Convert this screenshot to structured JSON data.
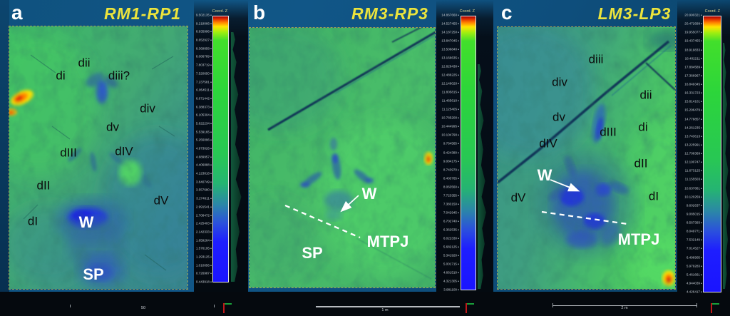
{
  "colors": {
    "title_yellow": "#ece43c",
    "annotation_dark": "#0b0b0b",
    "annotation_light": "#ffffff",
    "map_green": "#45b169",
    "footprint_blue": "#2a44d0",
    "hotspot_orange": "#ff5a00",
    "colorbar_top_red": "#a80000",
    "colorbar_green": "#2cd53b",
    "colorbar_bottom_blue": "#1a14ff",
    "background_blue": "#0e4e7c"
  },
  "panels": [
    {
      "letter": "a",
      "title": "RM1-RP1",
      "colorbar": {
        "header": "Coord. Z",
        "ticks": [
          "9.502135",
          "9.219066",
          "8.935996",
          "8.652927",
          "8.369858",
          "8.086789",
          "7.803719",
          "7.520650",
          "7.237581",
          "6.954511",
          "6.671442",
          "6.388373",
          "6.105304",
          "5.822234",
          "5.539165",
          "5.256096",
          "4.973026",
          "4.689957",
          "4.406888",
          "4.123818",
          "3.840749",
          "3.557680",
          "3.274611",
          "2.991541",
          "2.708472",
          "2.425403",
          "2.142333",
          "1.859264",
          "1.576195",
          "1.293125",
          "1.010056",
          "0.726987",
          "0.443918"
        ]
      },
      "digits": [
        "dii",
        "di",
        "diii?",
        "div",
        "dv",
        "dIII",
        "dIV",
        "dII",
        "dV",
        "dI"
      ],
      "whites": [
        "W",
        "SP"
      ],
      "scalebar_label": "50"
    },
    {
      "letter": "b",
      "title": "RM3-RP3",
      "colorbar": {
        "header": "Coord. Z",
        "ticks": [
          "14.867660",
          "14.527455",
          "14.187250",
          "13.847045",
          "13.506840",
          "13.166635",
          "12.826430",
          "12.486225",
          "12.146020",
          "11.805815",
          "11.465610",
          "11.125405",
          "10.785200",
          "10.444995",
          "10.104790",
          "9.764585",
          "9.424380",
          "9.084175",
          "8.743970",
          "8.403765",
          "8.063560",
          "7.723355",
          "7.383150",
          "7.042945",
          "6.702740",
          "6.362535",
          "6.022330",
          "5.682125",
          "5.341920",
          "5.001715",
          "4.661510",
          "4.321305",
          "3.981100"
        ]
      },
      "digits": [],
      "whites": [
        "W",
        "SP",
        "MTPJ"
      ],
      "scalebar_label": "1 m"
    },
    {
      "letter": "c",
      "title": "LM3-LP3",
      "colorbar": {
        "header": "Coord. Z",
        "ticks": [
          "20.990321",
          "20.472699",
          "19.955077",
          "19.437455",
          "18.919833",
          "18.402211",
          "17.884589",
          "17.366967",
          "16.849345",
          "16.331723",
          "15.814101",
          "15.296479",
          "14.778857",
          "14.261235",
          "13.743613",
          "13.225991",
          "12.708369",
          "12.190747",
          "11.673125",
          "11.155503",
          "10.637881",
          "10.120259",
          "9.602637",
          "9.085015",
          "8.567393",
          "8.049771",
          "7.532149",
          "7.014527",
          "6.496905",
          "5.979283",
          "5.461661",
          "4.944039",
          "4.426417"
        ]
      },
      "digits": [
        "diii",
        "div",
        "dii",
        "dv",
        "dIII",
        "di",
        "dIV",
        "dII",
        "dV",
        "dI"
      ],
      "whites": [
        "W",
        "MTPJ"
      ],
      "scalebar_label": "2 m"
    }
  ]
}
